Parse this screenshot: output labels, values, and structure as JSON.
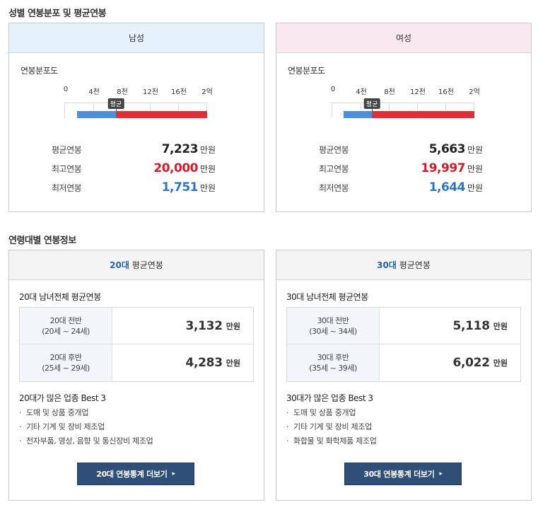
{
  "gender_section": {
    "title": "성별 연봉분포 및 평균연봉",
    "cards": [
      {
        "key": "male",
        "header": "남성",
        "dist_label": "연봉분포도",
        "ticks": [
          "0",
          "4천",
          "8천",
          "12천",
          "16천",
          "2억"
        ],
        "avg_tag": "평균",
        "range_min_fraction": 0.0875,
        "avg_fraction": 0.3612,
        "range_max_fraction": 1.0,
        "stats": [
          {
            "label": "평균연봉",
            "value": "7,223",
            "unit": "만원",
            "style": "normal"
          },
          {
            "label": "최고연봉",
            "value": "20,000",
            "unit": "만원",
            "style": "red"
          },
          {
            "label": "최저연봉",
            "value": "1,751",
            "unit": "만원",
            "style": "blue"
          }
        ]
      },
      {
        "key": "female",
        "header": "여성",
        "dist_label": "연봉분포도",
        "ticks": [
          "0",
          "4천",
          "8천",
          "12천",
          "16천",
          "2억"
        ],
        "avg_tag": "평균",
        "range_min_fraction": 0.0822,
        "avg_fraction": 0.2832,
        "range_max_fraction": 0.9999,
        "stats": [
          {
            "label": "평균연봉",
            "value": "5,663",
            "unit": "만원",
            "style": "normal"
          },
          {
            "label": "최고연봉",
            "value": "19,997",
            "unit": "만원",
            "style": "red"
          },
          {
            "label": "최저연봉",
            "value": "1,644",
            "unit": "만원",
            "style": "blue"
          }
        ]
      }
    ]
  },
  "age_section": {
    "title": "연령대별 연봉정보",
    "cards": [
      {
        "header_accent": "20대",
        "header_rest": "평균연봉",
        "subtitle": "20대 남녀전체 평균연봉",
        "rows": [
          {
            "label": "20대 전반",
            "range": "(20세 ~ 24세)",
            "value": "3,132",
            "unit": "만원"
          },
          {
            "label": "20대 후반",
            "range": "(25세 ~ 29세)",
            "value": "4,283",
            "unit": "만원"
          }
        ],
        "best_title": "20대가 많은 업종 Best 3",
        "best": [
          "도매 및 상품 중개업",
          "기타 기계 및 장비 제조업",
          "전자부품, 영상, 음향 및 통신장비 제조업"
        ],
        "button": "20대 연봉통계 더보기",
        "button_arrow": "▸"
      },
      {
        "header_accent": "30대",
        "header_rest": "평균연봉",
        "subtitle": "30대 남녀전체 평균연봉",
        "rows": [
          {
            "label": "30대 전반",
            "range": "(30세 ~ 34세)",
            "value": "5,118",
            "unit": "만원"
          },
          {
            "label": "30대 후반",
            "range": "(35세 ~ 39세)",
            "value": "6,022",
            "unit": "만원"
          }
        ],
        "best_title": "30대가 많은 업종 Best 3",
        "best": [
          "도매 및 상품 중개업",
          "기타 기계 및 장비 제조업",
          "화합물 및 화학제품 제조업"
        ],
        "button": "30대 연봉통계 더보기",
        "button_arrow": "▸"
      }
    ]
  },
  "colors": {
    "male_header": "#e5f1fb",
    "female_header": "#fae8f0",
    "bar_low": "#4c90d9",
    "bar_high": "#d9333a",
    "max_value": "#cc1f2c",
    "min_value": "#2e74bf",
    "button_bg": "#2f4f78"
  }
}
